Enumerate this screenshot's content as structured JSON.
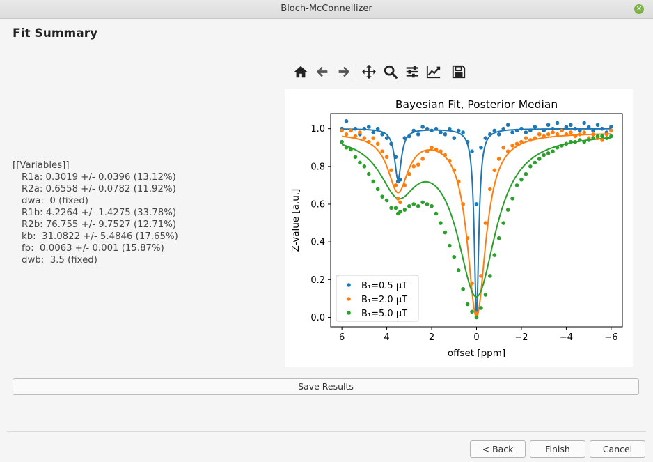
{
  "window": {
    "title": "Bloch-McConnellizer",
    "close_icon": "close-icon"
  },
  "page_title": "Fit Summary",
  "variables": {
    "header": "[[Variables]]",
    "lines": [
      "R1a: 0.3019 +/- 0.0396 (13.12%)",
      "R2a: 0.6558 +/- 0.0782 (11.92%)",
      "dwa:  0 (fixed)",
      "R1b: 4.2264 +/- 1.4275 (33.78%)",
      "R2b: 76.755 +/- 9.7527 (12.71%)",
      "kb:  31.0822 +/- 5.4846 (17.65%)",
      "fb:  0.0063 +/- 0.001 (15.87%)",
      "dwb:  3.5 (fixed)"
    ]
  },
  "toolbar": {
    "icons": [
      "home-icon",
      "back-arrow-icon",
      "forward-arrow-icon",
      "pan-icon",
      "zoom-icon",
      "subplots-sliders-icon",
      "edit-axis-icon",
      "save-figure-icon"
    ]
  },
  "chart_data": {
    "type": "scatter",
    "title": "Bayesian Fit, Posterior Median",
    "xlabel": "offset [ppm]",
    "ylabel": "Z-value [a.u.]",
    "xlim": [
      6.5,
      -6.5
    ],
    "ylim": [
      -0.05,
      1.08
    ],
    "x_reversed": true,
    "xticks": [
      6,
      4,
      2,
      0,
      -2,
      -4,
      -6
    ],
    "xtick_labels": [
      "6",
      "4",
      "2",
      "0",
      "−2",
      "−4",
      "−6"
    ],
    "yticks": [
      0.0,
      0.2,
      0.4,
      0.6,
      0.8,
      1.0
    ],
    "ytick_labels": [
      "0.0",
      "0.2",
      "0.4",
      "0.6",
      "0.8",
      "1.0"
    ],
    "legend": "lower-left",
    "grid": false,
    "series": [
      {
        "name": "B₁=0.5 µT",
        "color": "#1f77b4",
        "x": [
          6.0,
          5.8,
          5.6,
          5.4,
          5.2,
          5.0,
          4.8,
          4.6,
          4.4,
          4.2,
          4.0,
          3.8,
          3.6,
          3.5,
          3.4,
          3.2,
          3.0,
          2.8,
          2.6,
          2.4,
          2.2,
          2.0,
          1.8,
          1.6,
          1.4,
          1.2,
          1.0,
          0.8,
          0.6,
          0.4,
          0.2,
          0.0,
          -0.2,
          -0.4,
          -0.6,
          -0.8,
          -1.0,
          -1.2,
          -1.4,
          -1.6,
          -1.8,
          -2.0,
          -2.2,
          -2.4,
          -2.6,
          -2.8,
          -3.0,
          -3.2,
          -3.4,
          -3.6,
          -3.8,
          -4.0,
          -4.2,
          -4.4,
          -4.6,
          -4.8,
          -5.0,
          -5.2,
          -5.4,
          -5.6,
          -5.8,
          -6.0
        ],
        "y": [
          1.0,
          1.04,
          0.99,
          1.0,
          0.97,
          1.0,
          1.01,
          0.98,
          1.0,
          0.97,
          0.95,
          0.92,
          0.85,
          0.72,
          0.73,
          0.95,
          0.96,
          0.99,
          0.97,
          1.01,
          1.0,
          0.99,
          1.0,
          0.98,
          0.97,
          1.0,
          0.95,
          0.99,
          0.98,
          0.93,
          0.88,
          0.6,
          0.9,
          0.95,
          0.97,
          0.99,
          0.97,
          1.0,
          1.02,
          0.98,
          0.99,
          1.0,
          0.98,
          0.99,
          1.01,
          0.97,
          0.99,
          1.02,
          1.0,
          1.03,
          0.99,
          1.01,
          1.02,
          1.0,
          0.99,
          1.03,
          1.01,
          0.99,
          1.02,
          1.0,
          0.98,
          1.01
        ],
        "fit": {
          "baseline": 1.0,
          "dips": [
            {
              "center": 3.5,
              "depth": 0.27,
              "width": 0.18
            },
            {
              "center": 0.0,
              "depth": 0.99,
              "width": 0.12
            }
          ]
        }
      },
      {
        "name": "B₁=2.0 µT",
        "color": "#ff7f0e",
        "x": [
          6.0,
          5.8,
          5.6,
          5.4,
          5.2,
          5.0,
          4.8,
          4.6,
          4.4,
          4.2,
          4.0,
          3.8,
          3.6,
          3.5,
          3.4,
          3.2,
          3.0,
          2.8,
          2.6,
          2.4,
          2.2,
          2.0,
          1.8,
          1.6,
          1.4,
          1.2,
          1.0,
          0.8,
          0.6,
          0.4,
          0.2,
          0.0,
          -0.2,
          -0.4,
          -0.6,
          -0.8,
          -1.0,
          -1.2,
          -1.4,
          -1.6,
          -1.8,
          -2.0,
          -2.2,
          -2.4,
          -2.6,
          -2.8,
          -3.0,
          -3.2,
          -3.4,
          -3.6,
          -3.8,
          -4.0,
          -4.2,
          -4.4,
          -4.6,
          -4.8,
          -5.0,
          -5.2,
          -5.4,
          -5.6,
          -5.8,
          -6.0
        ],
        "y": [
          0.99,
          0.97,
          0.99,
          0.96,
          0.98,
          0.95,
          0.93,
          0.95,
          0.92,
          0.88,
          0.85,
          0.78,
          0.7,
          0.63,
          0.61,
          0.7,
          0.76,
          0.8,
          0.81,
          0.84,
          0.88,
          0.9,
          0.89,
          0.88,
          0.86,
          0.83,
          0.78,
          0.72,
          0.6,
          0.42,
          0.18,
          0.02,
          0.22,
          0.5,
          0.68,
          0.78,
          0.84,
          0.9,
          0.88,
          0.91,
          0.92,
          0.93,
          0.95,
          0.94,
          0.95,
          0.97,
          0.96,
          0.97,
          0.98,
          0.97,
          0.99,
          0.97,
          0.98,
          0.96,
          0.97,
          0.98,
          0.95,
          0.97,
          0.95,
          0.94,
          0.97,
          0.99
        ],
        "fit": {
          "baseline": 0.98,
          "dips": [
            {
              "center": 3.5,
              "depth": 0.3,
              "width": 0.55
            },
            {
              "center": 0.0,
              "depth": 0.97,
              "width": 0.5
            }
          ]
        }
      },
      {
        "name": "B₁=5.0 µT",
        "color": "#2ca02c",
        "x": [
          6.0,
          5.8,
          5.6,
          5.4,
          5.2,
          5.0,
          4.8,
          4.6,
          4.4,
          4.2,
          4.0,
          3.8,
          3.6,
          3.5,
          3.4,
          3.2,
          3.0,
          2.8,
          2.6,
          2.4,
          2.2,
          2.0,
          1.8,
          1.6,
          1.4,
          1.2,
          1.0,
          0.8,
          0.6,
          0.4,
          0.2,
          0.0,
          -0.2,
          -0.4,
          -0.6,
          -0.8,
          -1.0,
          -1.2,
          -1.4,
          -1.6,
          -1.8,
          -2.0,
          -2.2,
          -2.4,
          -2.6,
          -2.8,
          -3.0,
          -3.2,
          -3.4,
          -3.6,
          -3.8,
          -4.0,
          -4.2,
          -4.4,
          -4.6,
          -4.8,
          -5.0,
          -5.2,
          -5.4,
          -5.6,
          -5.8,
          -6.0
        ],
        "y": [
          0.93,
          0.9,
          0.89,
          0.85,
          0.82,
          0.8,
          0.76,
          0.72,
          0.68,
          0.64,
          0.62,
          0.58,
          0.58,
          0.55,
          0.56,
          0.57,
          0.59,
          0.6,
          0.59,
          0.61,
          0.6,
          0.59,
          0.55,
          0.5,
          0.45,
          0.38,
          0.32,
          0.25,
          0.15,
          0.07,
          0.03,
          0.0,
          0.05,
          0.12,
          0.22,
          0.33,
          0.42,
          0.5,
          0.57,
          0.63,
          0.7,
          0.73,
          0.76,
          0.8,
          0.82,
          0.84,
          0.86,
          0.87,
          0.88,
          0.9,
          0.91,
          0.92,
          0.93,
          0.93,
          0.94,
          0.93,
          0.94,
          0.95,
          0.96,
          0.96,
          0.95,
          0.96
        ],
        "fit": {
          "baseline": 0.98,
          "dips": [
            {
              "center": 3.5,
              "depth": 0.28,
              "width": 1.0
            },
            {
              "center": 0.0,
              "depth": 0.85,
              "width": 1.05
            }
          ]
        }
      }
    ]
  },
  "buttons": {
    "save_results": "Save Results",
    "back": "< Back",
    "finish": "Finish",
    "cancel": "Cancel"
  }
}
